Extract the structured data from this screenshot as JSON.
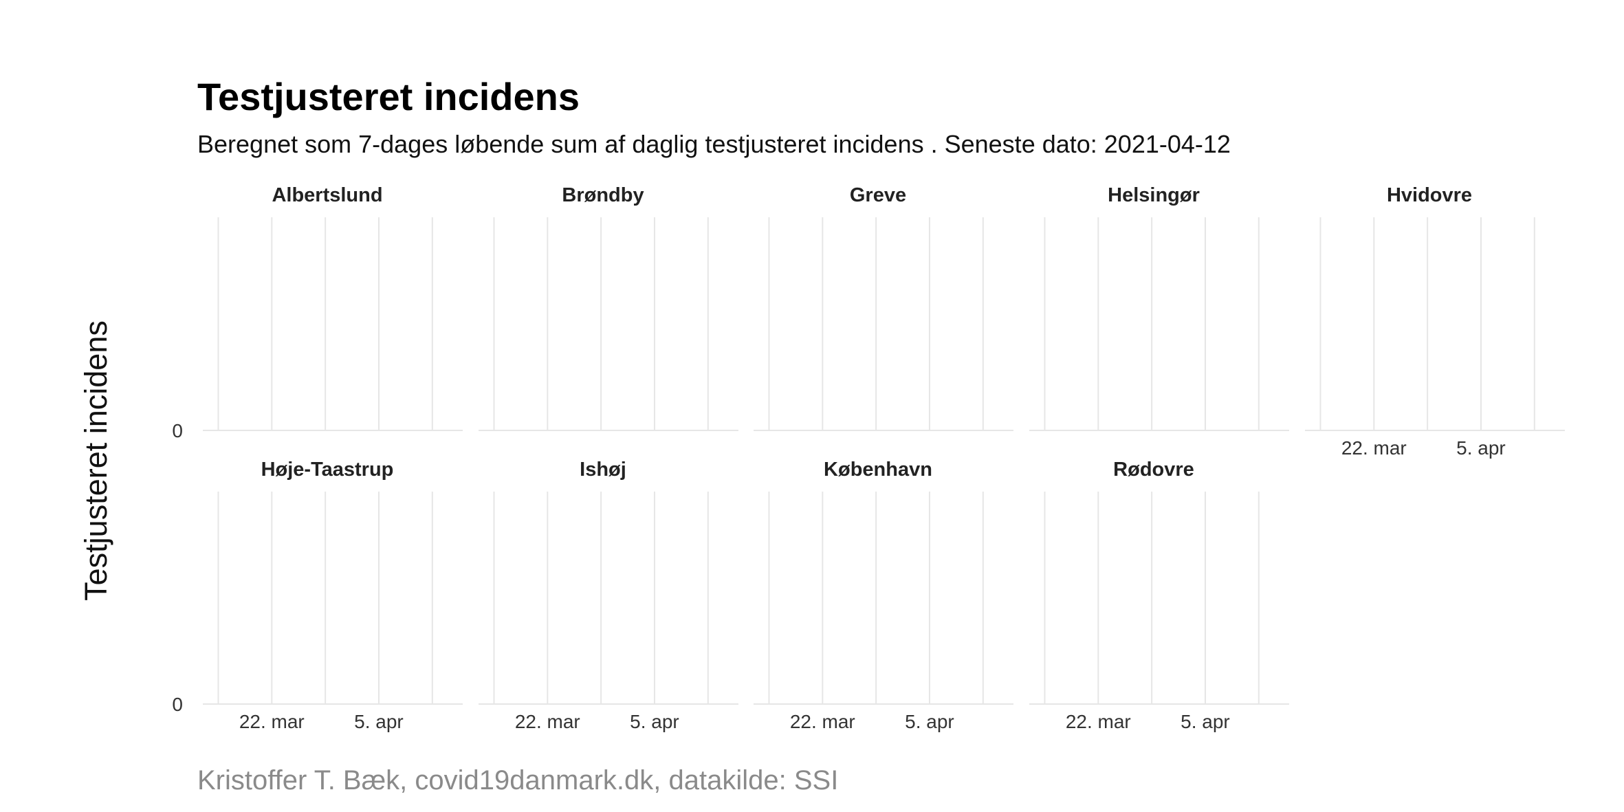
{
  "chart_data": {
    "type": "line",
    "title": "Testjusteret incidens",
    "subtitle": "Beregnet som 7-dages løbende sum af daglig testjusteret incidens . Seneste dato: 2021-04-12",
    "ylabel": "Testjusteret incidens",
    "caption": "Kristoffer T. Bæk, covid19danmark.dk, datakilde: SSI",
    "x_ticks": [
      "22. mar",
      "5. apr"
    ],
    "y_ticks": [
      "0"
    ],
    "grid": true,
    "facets": [
      {
        "name": "Albertslund",
        "values": []
      },
      {
        "name": "Brøndby",
        "values": []
      },
      {
        "name": "Greve",
        "values": []
      },
      {
        "name": "Helsingør",
        "values": []
      },
      {
        "name": "Hvidovre",
        "values": []
      },
      {
        "name": "Høje-Taastrup",
        "values": []
      },
      {
        "name": "Ishøj",
        "values": []
      },
      {
        "name": "København",
        "values": []
      },
      {
        "name": "Rødovre",
        "values": []
      }
    ]
  }
}
